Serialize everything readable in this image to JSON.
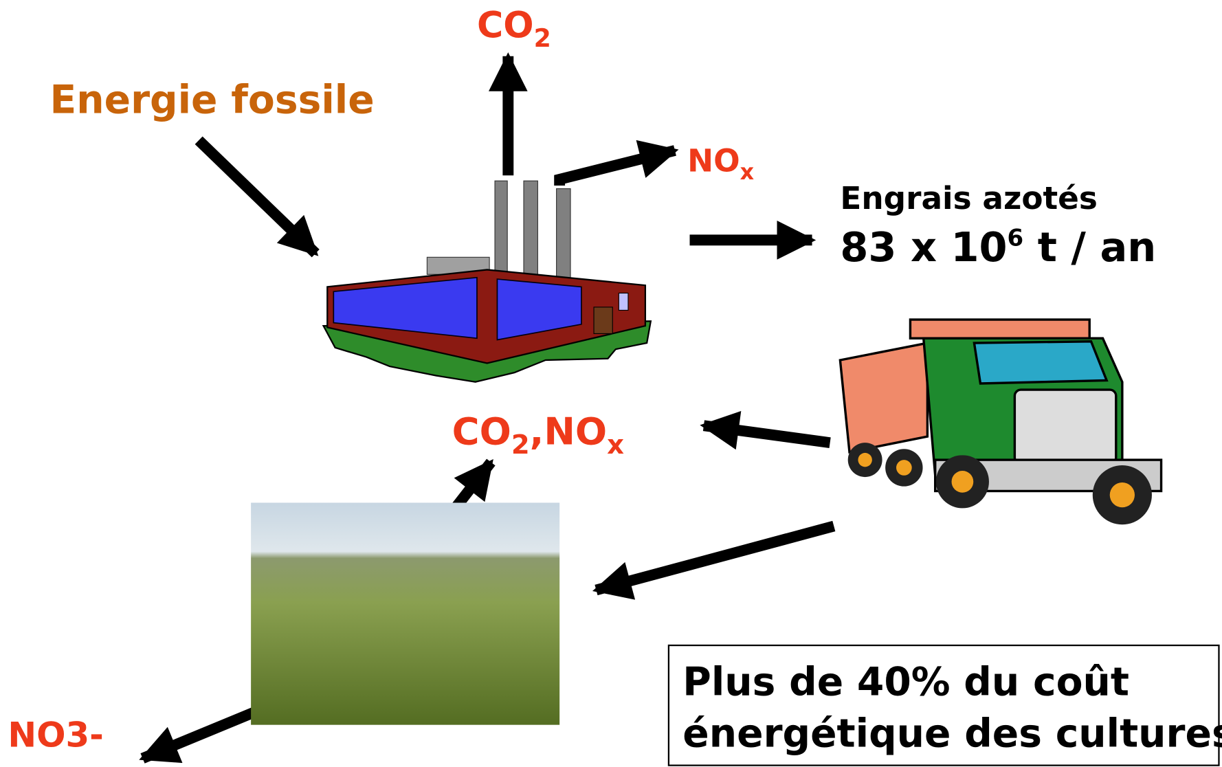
{
  "labels": {
    "energy": "Energie fossile",
    "co2_top": {
      "main": "CO",
      "sub": "2"
    },
    "nox_top": {
      "main": "NO",
      "sub": "x"
    },
    "fertilizer": {
      "name": "Engrais azotés",
      "amount_main": "83 x 10",
      "amount_sup": "6",
      "amount_rest": " t / an"
    },
    "co2_nox": {
      "main1": "CO",
      "sub1": "2",
      "sep": ",",
      "main2": "NO",
      "sub2": "x"
    },
    "no3": "NO3-"
  },
  "note": {
    "line1": "Plus de 40% du coût",
    "line2": "énergétique des cultures"
  }
}
